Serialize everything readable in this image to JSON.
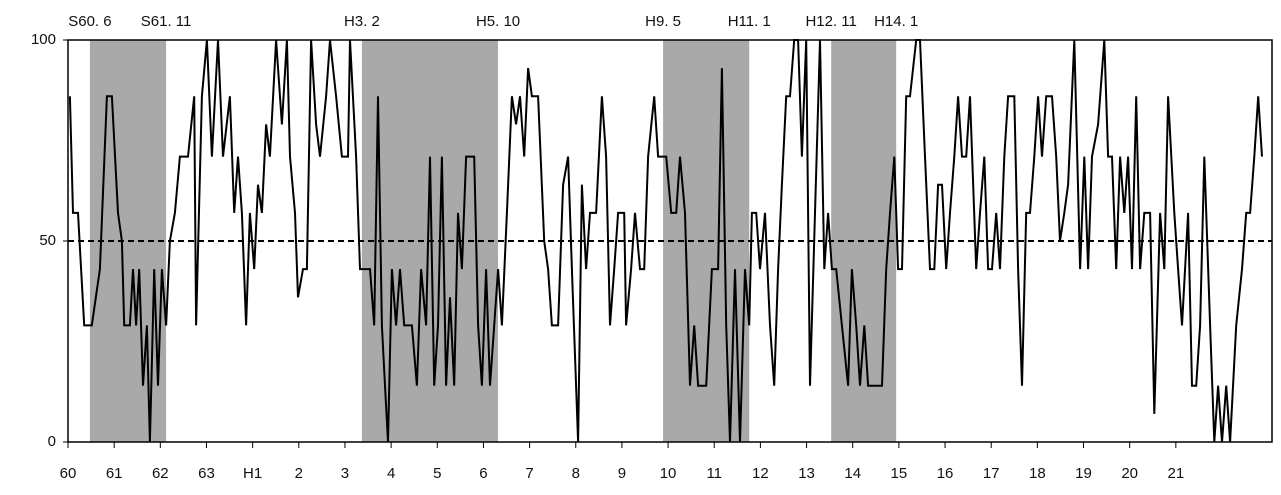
{
  "chart_data": {
    "type": "line",
    "color": "#000000",
    "x": [
      0.5,
      1.3,
      2.6,
      4.2,
      6.2,
      8.3,
      10.1,
      11.4,
      13,
      14,
      14.6,
      16.1,
      16.9,
      17.7,
      18.5,
      19.5,
      20.5,
      21.3,
      22.4,
      23.4,
      24.4,
      25.5,
      26.5,
      27.8,
      29.1,
      31.2,
      32.8,
      33.3,
      34.8,
      36.1,
      37.4,
      39,
      40.3,
      42.1,
      43.2,
      44.2,
      45.2,
      46.3,
      47.3,
      48.4,
      49.4,
      50.4,
      51.5,
      52.5,
      54.1,
      55.6,
      56.9,
      57.7,
      59,
      59.8,
      61.1,
      62.1,
      63.2,
      64.5,
      65.5,
      67.1,
      68.1,
      69.7,
      71.2,
      72.8,
      73.3,
      74.9,
      75.9,
      78.5,
      79.6,
      80.6,
      81.6,
      82.4,
      83.2,
      84.2,
      85.3,
      86.3,
      87.4,
      89.4,
      90.7,
      91.8,
      93.1,
      94.1,
      95.2,
      96.2,
      97.2,
      98.3,
      99.3,
      100.4,
      101.4,
      102.4,
      103.5,
      105.6,
      106.6,
      107.6,
      108.7,
      109.7,
      110.8,
      111.8,
      112.8,
      114.1,
      115.4,
      116.5,
      117.5,
      118.6,
      119.6,
      120.6,
      122.2,
      123.8,
      124.8,
      125.8,
      127.4,
      128.7,
      130,
      131,
      132.6,
      133.6,
      134.7,
      135.7,
      137.3,
      138.8,
      139.9,
      140.9,
      142,
      143,
      144.6,
      145.1,
      146.4,
      147.4,
      148.7,
      149.8,
      150.8,
      152.4,
      153.4,
      155.5,
      156.8,
      158.1,
      159.1,
      160.4,
      161.7,
      162.8,
      163.8,
      165.9,
      167.4,
      169,
      170,
      171.1,
      172.1,
      173.4,
      174.7,
      176,
      177.1,
      177.8,
      178.9,
      179.9,
      181.2,
      182.5,
      183.6,
      184.6,
      185.6,
      186.7,
      187.7,
      188.8,
      189.8,
      190.8,
      191.9,
      192.9,
      194.2,
      195.5,
      196.6,
      197.6,
      198.6,
      199.7,
      201.2,
      202.8,
      203.8,
      204.9,
      205.9,
      207,
      208,
      211.6,
      212.7,
      213.7,
      214.8,
      215.8,
      216.8,
      217.9,
      218.9,
      220.5,
      221.5,
      222.8,
      224.1,
      225.2,
      226.2,
      227.2,
      228.3,
      229.3,
      230.4,
      231.4,
      232.4,
      233.5,
      234.5,
      236.1,
      237.1,
      238.2,
      239.2,
      240.2,
      241.3,
      242.3,
      243.4,
      244.4,
      246,
      247,
      248,
      249.1,
      250.1,
      251.2,
      252.2,
      253.2,
      254.3,
      255.8,
      256.9,
      257.9,
      259,
      260,
      261.6,
      263.1,
      264.2,
      265.2,
      266.2,
      267.8,
      269.4,
      270.4,
      271.4,
      272.5,
      273.5,
      274.6,
      275.6,
      276.6,
      277.7,
      278.7,
      279.8,
      281.3,
      282.4,
      283.9,
      285,
      286,
      287.6,
      288.6,
      289.6,
      291.2,
      292.2,
      293.3,
      294.3,
      295.4,
      296.9,
      298,
      299,
      300,
      301.1,
      302.1,
      303.7,
      305.2,
      306.3,
      307.3,
      308.4,
      309.4,
      310.4
    ],
    "values": [
      86,
      57,
      57,
      29,
      29,
      43,
      86,
      86,
      57,
      50,
      29,
      29,
      43,
      29,
      43,
      14,
      29,
      0,
      43,
      14,
      43,
      29,
      50,
      57,
      71,
      71,
      86,
      29,
      86,
      100,
      71,
      100,
      71,
      86,
      57,
      71,
      57,
      29,
      57,
      43,
      64,
      57,
      79,
      71,
      100,
      79,
      100,
      71,
      57,
      36,
      43,
      43,
      100,
      79,
      71,
      86,
      100,
      86,
      71,
      71,
      100,
      71,
      43,
      43,
      29,
      86,
      29,
      14,
      0,
      43,
      29,
      43,
      29,
      29,
      14,
      43,
      29,
      71,
      14,
      29,
      71,
      14,
      36,
      14,
      57,
      43,
      71,
      71,
      29,
      14,
      43,
      14,
      29,
      43,
      29,
      57,
      86,
      79,
      86,
      71,
      93,
      86,
      86,
      50,
      43,
      29,
      29,
      64,
      71,
      43,
      0,
      64,
      43,
      57,
      57,
      86,
      71,
      29,
      43,
      57,
      57,
      29,
      43,
      57,
      43,
      43,
      71,
      86,
      71,
      71,
      57,
      57,
      71,
      57,
      14,
      29,
      14,
      14,
      43,
      43,
      93,
      29,
      0,
      43,
      0,
      43,
      29,
      57,
      57,
      43,
      57,
      29,
      14,
      43,
      64,
      86,
      86,
      100,
      100,
      71,
      100,
      14,
      57,
      100,
      43,
      57,
      43,
      43,
      29,
      14,
      43,
      29,
      14,
      29,
      14,
      14,
      43,
      57,
      71,
      43,
      43,
      86,
      86,
      100,
      100,
      71,
      43,
      43,
      64,
      64,
      43,
      57,
      71,
      86,
      71,
      71,
      86,
      43,
      57,
      71,
      43,
      43,
      57,
      43,
      71,
      86,
      86,
      43,
      14,
      57,
      57,
      71,
      86,
      71,
      86,
      86,
      71,
      50,
      57,
      64,
      100,
      43,
      71,
      43,
      71,
      79,
      100,
      71,
      71,
      43,
      71,
      57,
      71,
      43,
      86,
      43,
      57,
      57,
      7,
      57,
      43,
      86,
      57,
      43,
      29,
      57,
      14,
      14,
      29,
      71,
      29,
      0,
      14,
      0,
      14,
      0,
      29,
      43,
      57,
      57,
      71,
      86,
      71
    ],
    "xlim": [
      0,
      313
    ],
    "xticks": [
      {
        "value": 0,
        "label": "60"
      },
      {
        "value": 12,
        "label": "61"
      },
      {
        "value": 24,
        "label": "62"
      },
      {
        "value": 36,
        "label": "63"
      },
      {
        "value": 48,
        "label": "H1"
      },
      {
        "value": 60,
        "label": "2"
      },
      {
        "value": 72,
        "label": "3"
      },
      {
        "value": 84,
        "label": "4"
      },
      {
        "value": 96,
        "label": "5"
      },
      {
        "value": 108,
        "label": "6"
      },
      {
        "value": 120,
        "label": "7"
      },
      {
        "value": 132,
        "label": "8"
      },
      {
        "value": 144,
        "label": "9"
      },
      {
        "value": 156,
        "label": "10"
      },
      {
        "value": 168,
        "label": "11"
      },
      {
        "value": 180,
        "label": "12"
      },
      {
        "value": 192,
        "label": "13"
      },
      {
        "value": 204,
        "label": "14"
      },
      {
        "value": 216,
        "label": "15"
      },
      {
        "value": 228,
        "label": "16"
      },
      {
        "value": 240,
        "label": "17"
      },
      {
        "value": 252,
        "label": "18"
      },
      {
        "value": 264,
        "label": "19"
      },
      {
        "value": 276,
        "label": "20"
      },
      {
        "value": 288,
        "label": "21"
      }
    ],
    "ylim": [
      0,
      100
    ],
    "yticks": [
      0,
      50,
      100
    ],
    "reference_line": 50,
    "shade_color": "#a9a9a9",
    "periods": [
      {
        "start": 5.7,
        "end": 25.5,
        "start_label": "S60. 6",
        "end_label": "S61. 11"
      },
      {
        "start": 76.4,
        "end": 111.8,
        "start_label": "H3. 2",
        "end_label": "H5. 10"
      },
      {
        "start": 154.7,
        "end": 177.1,
        "start_label": "H9. 5",
        "end_label": "H11. 1"
      },
      {
        "start": 198.4,
        "end": 215.3,
        "start_label": "H12. 11",
        "end_label": "H14. 1"
      }
    ]
  }
}
